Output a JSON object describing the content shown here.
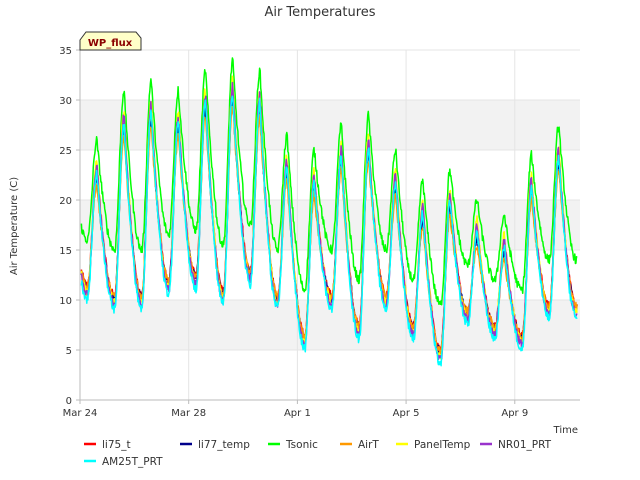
{
  "chart_data": {
    "type": "line",
    "title": "Air Temperatures",
    "xlabel": "Time",
    "ylabel": "Air Temperature (C)",
    "site_label": "WP_flux",
    "ylim": [
      0,
      35
    ],
    "yticks": [
      0,
      5,
      10,
      15,
      20,
      25,
      30,
      35
    ],
    "x_range_days": [
      0,
      18.4
    ],
    "x_start_date": "Mar 24",
    "xticks": [
      {
        "day": 0,
        "label": "Mar 24"
      },
      {
        "day": 4,
        "label": "Mar 28"
      },
      {
        "day": 8,
        "label": "Apr 1"
      },
      {
        "day": 12,
        "label": "Apr 5"
      },
      {
        "day": 16,
        "label": "Apr 9"
      }
    ],
    "grid": "alternating horizontal bands",
    "legend_position": "bottom",
    "daily_extremes": {
      "day": [
        0,
        1,
        2,
        3,
        4,
        5,
        6,
        7,
        8,
        9,
        10,
        11,
        12,
        13,
        14,
        15,
        16,
        17
      ],
      "base_max": [
        22.5,
        27.5,
        28.5,
        27.5,
        29.5,
        30.5,
        29.5,
        23.0,
        21.5,
        24.0,
        25.0,
        21.5,
        18.5,
        19.5,
        16.5,
        15.0,
        21.0,
        24.0
      ],
      "base_min": [
        11.0,
        10.0,
        10.0,
        11.5,
        12.0,
        10.5,
        12.5,
        10.0,
        6.0,
        10.0,
        7.0,
        10.0,
        7.0,
        4.5,
        8.5,
        7.0,
        6.0,
        9.0
      ]
    },
    "series": [
      {
        "name": "li75_t",
        "color": "#ff0000",
        "offset_max": 0.0,
        "offset_min": 0.4
      },
      {
        "name": "li77_temp",
        "color": "#00008b",
        "offset_max": -0.3,
        "offset_min": 0.2
      },
      {
        "name": "Tsonic",
        "color": "#00ff00",
        "offset_max": 3.5,
        "offset_min": 5.0
      },
      {
        "name": "AirT",
        "color": "#ff9900",
        "offset_max": -1.0,
        "offset_min": 0.3
      },
      {
        "name": "PanelTemp",
        "color": "#ffff00",
        "offset_max": 1.5,
        "offset_min": -0.3
      },
      {
        "name": "NR01_PRT",
        "color": "#9933cc",
        "offset_max": 1.0,
        "offset_min": -0.5
      },
      {
        "name": "AM25T_PRT",
        "color": "#00ffff",
        "offset_max": 0.3,
        "offset_min": -0.9
      }
    ]
  }
}
